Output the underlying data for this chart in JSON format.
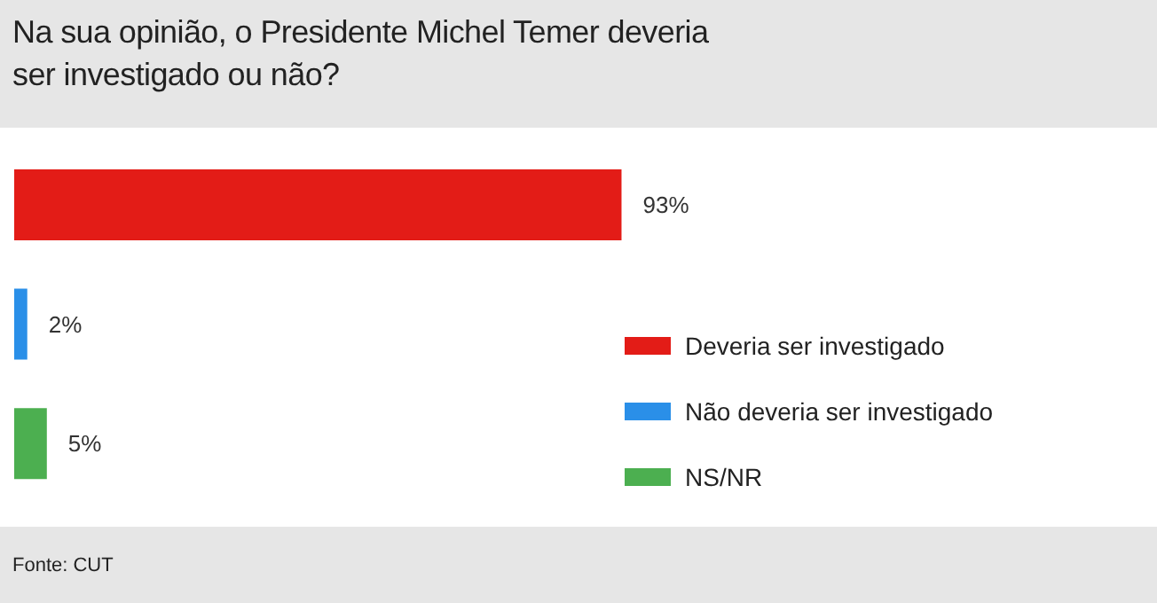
{
  "chart_data": {
    "type": "bar",
    "orientation": "horizontal",
    "stacked": true,
    "title": "Na sua opinião, o Presidente Michel Temer deveria ser investigado ou não?",
    "categories": [
      null,
      null,
      null
    ],
    "series": [
      {
        "name": "Deveria ser investigado",
        "color": "#e31c17",
        "values": [
          93,
          null,
          null
        ],
        "value_labels": [
          "93%",
          null,
          null
        ]
      },
      {
        "name": "Não deveria ser investigado",
        "color": "#2a8fe8",
        "values": [
          null,
          2,
          null
        ],
        "value_labels": [
          null,
          "2%",
          null
        ]
      },
      {
        "name": "NS/NR",
        "color": "#4caf50",
        "values": [
          null,
          null,
          5
        ],
        "value_labels": [
          null,
          null,
          "5%"
        ]
      }
    ],
    "xlim": [
      0,
      100
    ],
    "tick_labels": false,
    "legend": "right",
    "annotations": [
      "Fonte: CUT"
    ]
  }
}
